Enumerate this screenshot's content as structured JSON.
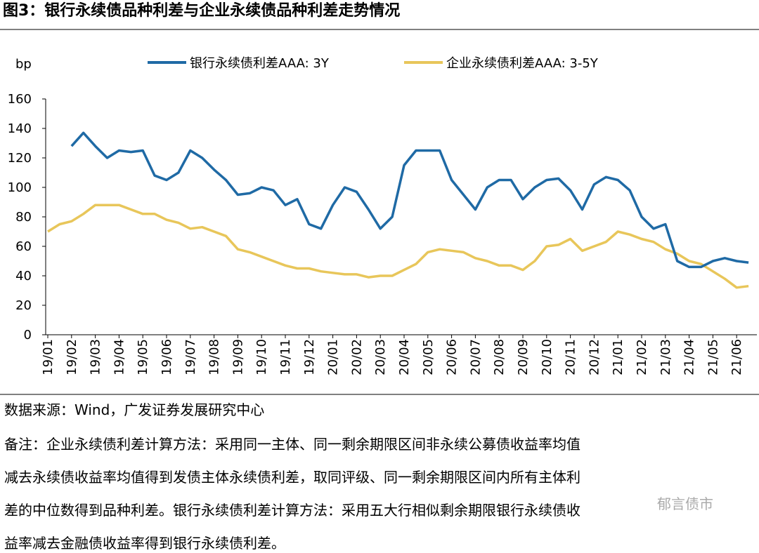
{
  "chart_data": {
    "type": "line",
    "title": "图3：银行永续债品种利差与企业永续债品种利差走势情况",
    "y_label": "bp",
    "categories": [
      "19/01",
      null,
      "19/02",
      null,
      "19/03",
      null,
      "19/04",
      null,
      "19/05",
      null,
      "19/06",
      null,
      "19/07",
      null,
      "19/08",
      null,
      "19/09",
      null,
      "19/10",
      null,
      "19/11",
      null,
      "19/12",
      null,
      "20/01",
      null,
      "20/02",
      null,
      "20/03",
      null,
      "20/04",
      null,
      "20/05",
      null,
      "20/06",
      null,
      "20/07",
      null,
      "20/08",
      null,
      "20/09",
      null,
      "20/10",
      null,
      "20/11",
      null,
      "20/12",
      null,
      "21/01",
      null,
      "21/02",
      null,
      "21/03",
      null,
      "21/04",
      null,
      "21/05",
      null,
      "21/06",
      null
    ],
    "series": [
      {
        "name": "银行永续债利差AAA: 3Y",
        "color": "#1f6aa5",
        "values": [
          null,
          null,
          128,
          137,
          128,
          120,
          125,
          124,
          125,
          108,
          105,
          110,
          125,
          120,
          112,
          105,
          95,
          96,
          100,
          98,
          88,
          92,
          75,
          72,
          88,
          100,
          97,
          85,
          72,
          80,
          115,
          125,
          125,
          125,
          105,
          95,
          85,
          100,
          105,
          105,
          92,
          100,
          105,
          106,
          98,
          85,
          102,
          107,
          105,
          98,
          80,
          72,
          75,
          50,
          46,
          46,
          50,
          52,
          50,
          49
        ]
      },
      {
        "name": "企业永续债利差AAA: 3-5Y",
        "color": "#e8c65a",
        "values": [
          70,
          75,
          77,
          82,
          88,
          88,
          88,
          85,
          82,
          82,
          78,
          76,
          72,
          73,
          70,
          67,
          58,
          56,
          53,
          50,
          47,
          45,
          45,
          43,
          42,
          41,
          41,
          39,
          40,
          40,
          44,
          48,
          56,
          58,
          57,
          56,
          52,
          50,
          47,
          47,
          44,
          50,
          60,
          61,
          65,
          57,
          60,
          63,
          70,
          68,
          65,
          63,
          58,
          55,
          50,
          48,
          43,
          38,
          32,
          33
        ]
      }
    ],
    "ylim": [
      0,
      160
    ],
    "yticks": [
      0,
      20,
      40,
      60,
      80,
      100,
      120,
      140,
      160
    ],
    "source": "数据来源：Wind，广发证券发展研究中心",
    "notes": [
      "备注：企业永续债利差计算方法：采用同一主体、同一剩余期限区间非永续公募债收益率均值",
      "减去永续债收益率均值得到发债主体永续债利差，取同评级、同一剩余期限区间内所有主体利",
      "差的中位数得到品种利差。银行永续债利差计算方法：采用五大行相似剩余期限银行永续债收",
      "益率减去金融债收益率得到银行永续债利差。"
    ],
    "watermark": "郁言债市"
  }
}
